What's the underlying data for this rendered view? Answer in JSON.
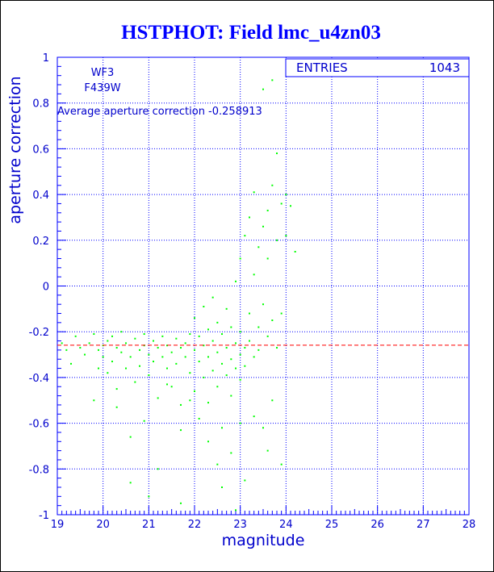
{
  "title": "HSTPHOT: Field lmc_u4zn03",
  "labels": {
    "camera": "WF3",
    "filter": "F439W"
  },
  "annotation": "Average aperture correction -0.258913",
  "stats": {
    "label": "ENTRIES",
    "value": "1043"
  },
  "colors": {
    "axis": "#0000ff",
    "points": "#00ff00",
    "mean_line": "#ff0000",
    "text": "#0000cc"
  },
  "chart_data": {
    "type": "scatter",
    "title": "HSTPHOT: Field lmc_u4zn03",
    "xlabel": "magnitude",
    "ylabel": "aperture correction",
    "xlim": [
      19,
      28
    ],
    "ylim": [
      -1,
      1
    ],
    "xticks": [
      "19",
      "20",
      "21",
      "22",
      "23",
      "24",
      "25",
      "26",
      "27",
      "28"
    ],
    "yticks": [
      "-1",
      "-0.8",
      "-0.6",
      "-0.4",
      "-0.2",
      "0",
      "0.2",
      "0.4",
      "0.6",
      "0.8",
      "1"
    ],
    "grid": true,
    "entries": 1043,
    "mean_correction": -0.258913,
    "points": [
      [
        19.1,
        -0.25
      ],
      [
        19.2,
        -0.28
      ],
      [
        19.3,
        -0.34
      ],
      [
        19.4,
        -0.22
      ],
      [
        19.5,
        -0.27
      ],
      [
        19.6,
        -0.3
      ],
      [
        19.7,
        -0.25
      ],
      [
        19.8,
        -0.21
      ],
      [
        19.9,
        -0.36
      ],
      [
        19.9,
        -0.28
      ],
      [
        20.0,
        -0.26
      ],
      [
        20.0,
        -0.31
      ],
      [
        20.1,
        -0.24
      ],
      [
        20.1,
        -0.38
      ],
      [
        20.2,
        -0.22
      ],
      [
        20.2,
        -0.33
      ],
      [
        20.3,
        -0.27
      ],
      [
        20.3,
        -0.45
      ],
      [
        20.4,
        -0.29
      ],
      [
        20.4,
        -0.2
      ],
      [
        20.5,
        -0.36
      ],
      [
        20.5,
        -0.25
      ],
      [
        20.6,
        -0.31
      ],
      [
        20.6,
        -0.66
      ],
      [
        20.7,
        -0.23
      ],
      [
        20.7,
        -0.42
      ],
      [
        20.8,
        -0.28
      ],
      [
        20.8,
        -0.35
      ],
      [
        20.9,
        -0.26
      ],
      [
        20.9,
        -0.21
      ],
      [
        21.0,
        -0.3
      ],
      [
        21.0,
        -0.39
      ],
      [
        21.1,
        -0.24
      ],
      [
        21.1,
        -0.33
      ],
      [
        21.2,
        -0.27
      ],
      [
        21.2,
        -0.49
      ],
      [
        21.3,
        -0.22
      ],
      [
        21.3,
        -0.31
      ],
      [
        21.4,
        -0.36
      ],
      [
        21.4,
        -0.26
      ],
      [
        21.5,
        -0.29
      ],
      [
        21.5,
        -0.44
      ],
      [
        21.6,
        -0.23
      ],
      [
        21.6,
        -0.34
      ],
      [
        21.7,
        -0.27
      ],
      [
        21.7,
        -0.52
      ],
      [
        21.8,
        -0.31
      ],
      [
        21.8,
        -0.25
      ],
      [
        21.9,
        -0.38
      ],
      [
        21.9,
        -0.21
      ],
      [
        22.0,
        -0.28
      ],
      [
        22.0,
        -0.46
      ],
      [
        22.0,
        -0.14
      ],
      [
        22.1,
        -0.33
      ],
      [
        22.1,
        -0.22
      ],
      [
        22.1,
        -0.58
      ],
      [
        22.2,
        -0.26
      ],
      [
        22.2,
        -0.4
      ],
      [
        22.2,
        -0.09
      ],
      [
        22.3,
        -0.31
      ],
      [
        22.3,
        -0.19
      ],
      [
        22.3,
        -0.51
      ],
      [
        22.4,
        -0.24
      ],
      [
        22.4,
        -0.37
      ],
      [
        22.4,
        -0.05
      ],
      [
        22.5,
        -0.29
      ],
      [
        22.5,
        -0.44
      ],
      [
        22.5,
        -0.16
      ],
      [
        22.6,
        -0.34
      ],
      [
        22.6,
        -0.62
      ],
      [
        22.6,
        -0.21
      ],
      [
        22.7,
        -0.27
      ],
      [
        22.7,
        -0.39
      ],
      [
        22.7,
        -0.1
      ],
      [
        22.8,
        -0.32
      ],
      [
        22.8,
        -0.48
      ],
      [
        22.8,
        -0.18
      ],
      [
        22.9,
        -0.25
      ],
      [
        22.9,
        -0.36
      ],
      [
        22.9,
        0.02
      ],
      [
        23.0,
        -0.3
      ],
      [
        23.0,
        -0.41
      ],
      [
        23.0,
        0.12
      ],
      [
        23.0,
        -0.2
      ],
      [
        23.1,
        -0.27
      ],
      [
        23.1,
        0.22
      ],
      [
        23.1,
        -0.35
      ],
      [
        23.2,
        -0.12
      ],
      [
        23.2,
        0.3
      ],
      [
        23.2,
        -0.24
      ],
      [
        23.3,
        0.05
      ],
      [
        23.3,
        -0.31
      ],
      [
        23.3,
        0.41
      ],
      [
        23.4,
        -0.18
      ],
      [
        23.4,
        0.17
      ],
      [
        23.4,
        -0.28
      ],
      [
        23.5,
        0.26
      ],
      [
        23.5,
        -0.08
      ],
      [
        23.5,
        0.86
      ],
      [
        23.6,
        0.33
      ],
      [
        23.6,
        -0.22
      ],
      [
        23.6,
        0.12
      ],
      [
        23.7,
        0.9
      ],
      [
        23.7,
        0.44
      ],
      [
        23.7,
        -0.15
      ],
      [
        23.8,
        0.58
      ],
      [
        23.8,
        0.2
      ],
      [
        23.8,
        -0.27
      ],
      [
        23.9,
        0.36
      ],
      [
        23.9,
        -0.12
      ],
      [
        24.0,
        0.4
      ],
      [
        24.0,
        0.22
      ],
      [
        24.1,
        0.35
      ],
      [
        24.2,
        0.15
      ],
      [
        20.9,
        -0.59
      ],
      [
        21.0,
        -0.92
      ],
      [
        21.7,
        -0.95
      ],
      [
        22.6,
        -0.88
      ],
      [
        22.3,
        -0.68
      ],
      [
        22.5,
        -0.78
      ],
      [
        22.8,
        -0.73
      ],
      [
        23.1,
        -0.85
      ],
      [
        23.0,
        -0.6
      ],
      [
        23.3,
        -0.57
      ],
      [
        23.5,
        -0.62
      ],
      [
        23.7,
        -0.5
      ],
      [
        23.9,
        -0.78
      ],
      [
        23.6,
        -0.72
      ],
      [
        20.6,
        -0.86
      ],
      [
        21.2,
        -0.8
      ],
      [
        21.7,
        -0.63
      ],
      [
        22.9,
        -0.98
      ],
      [
        19.8,
        -0.5
      ],
      [
        20.3,
        -0.53
      ],
      [
        21.4,
        -0.43
      ],
      [
        21.9,
        -0.5
      ]
    ]
  }
}
